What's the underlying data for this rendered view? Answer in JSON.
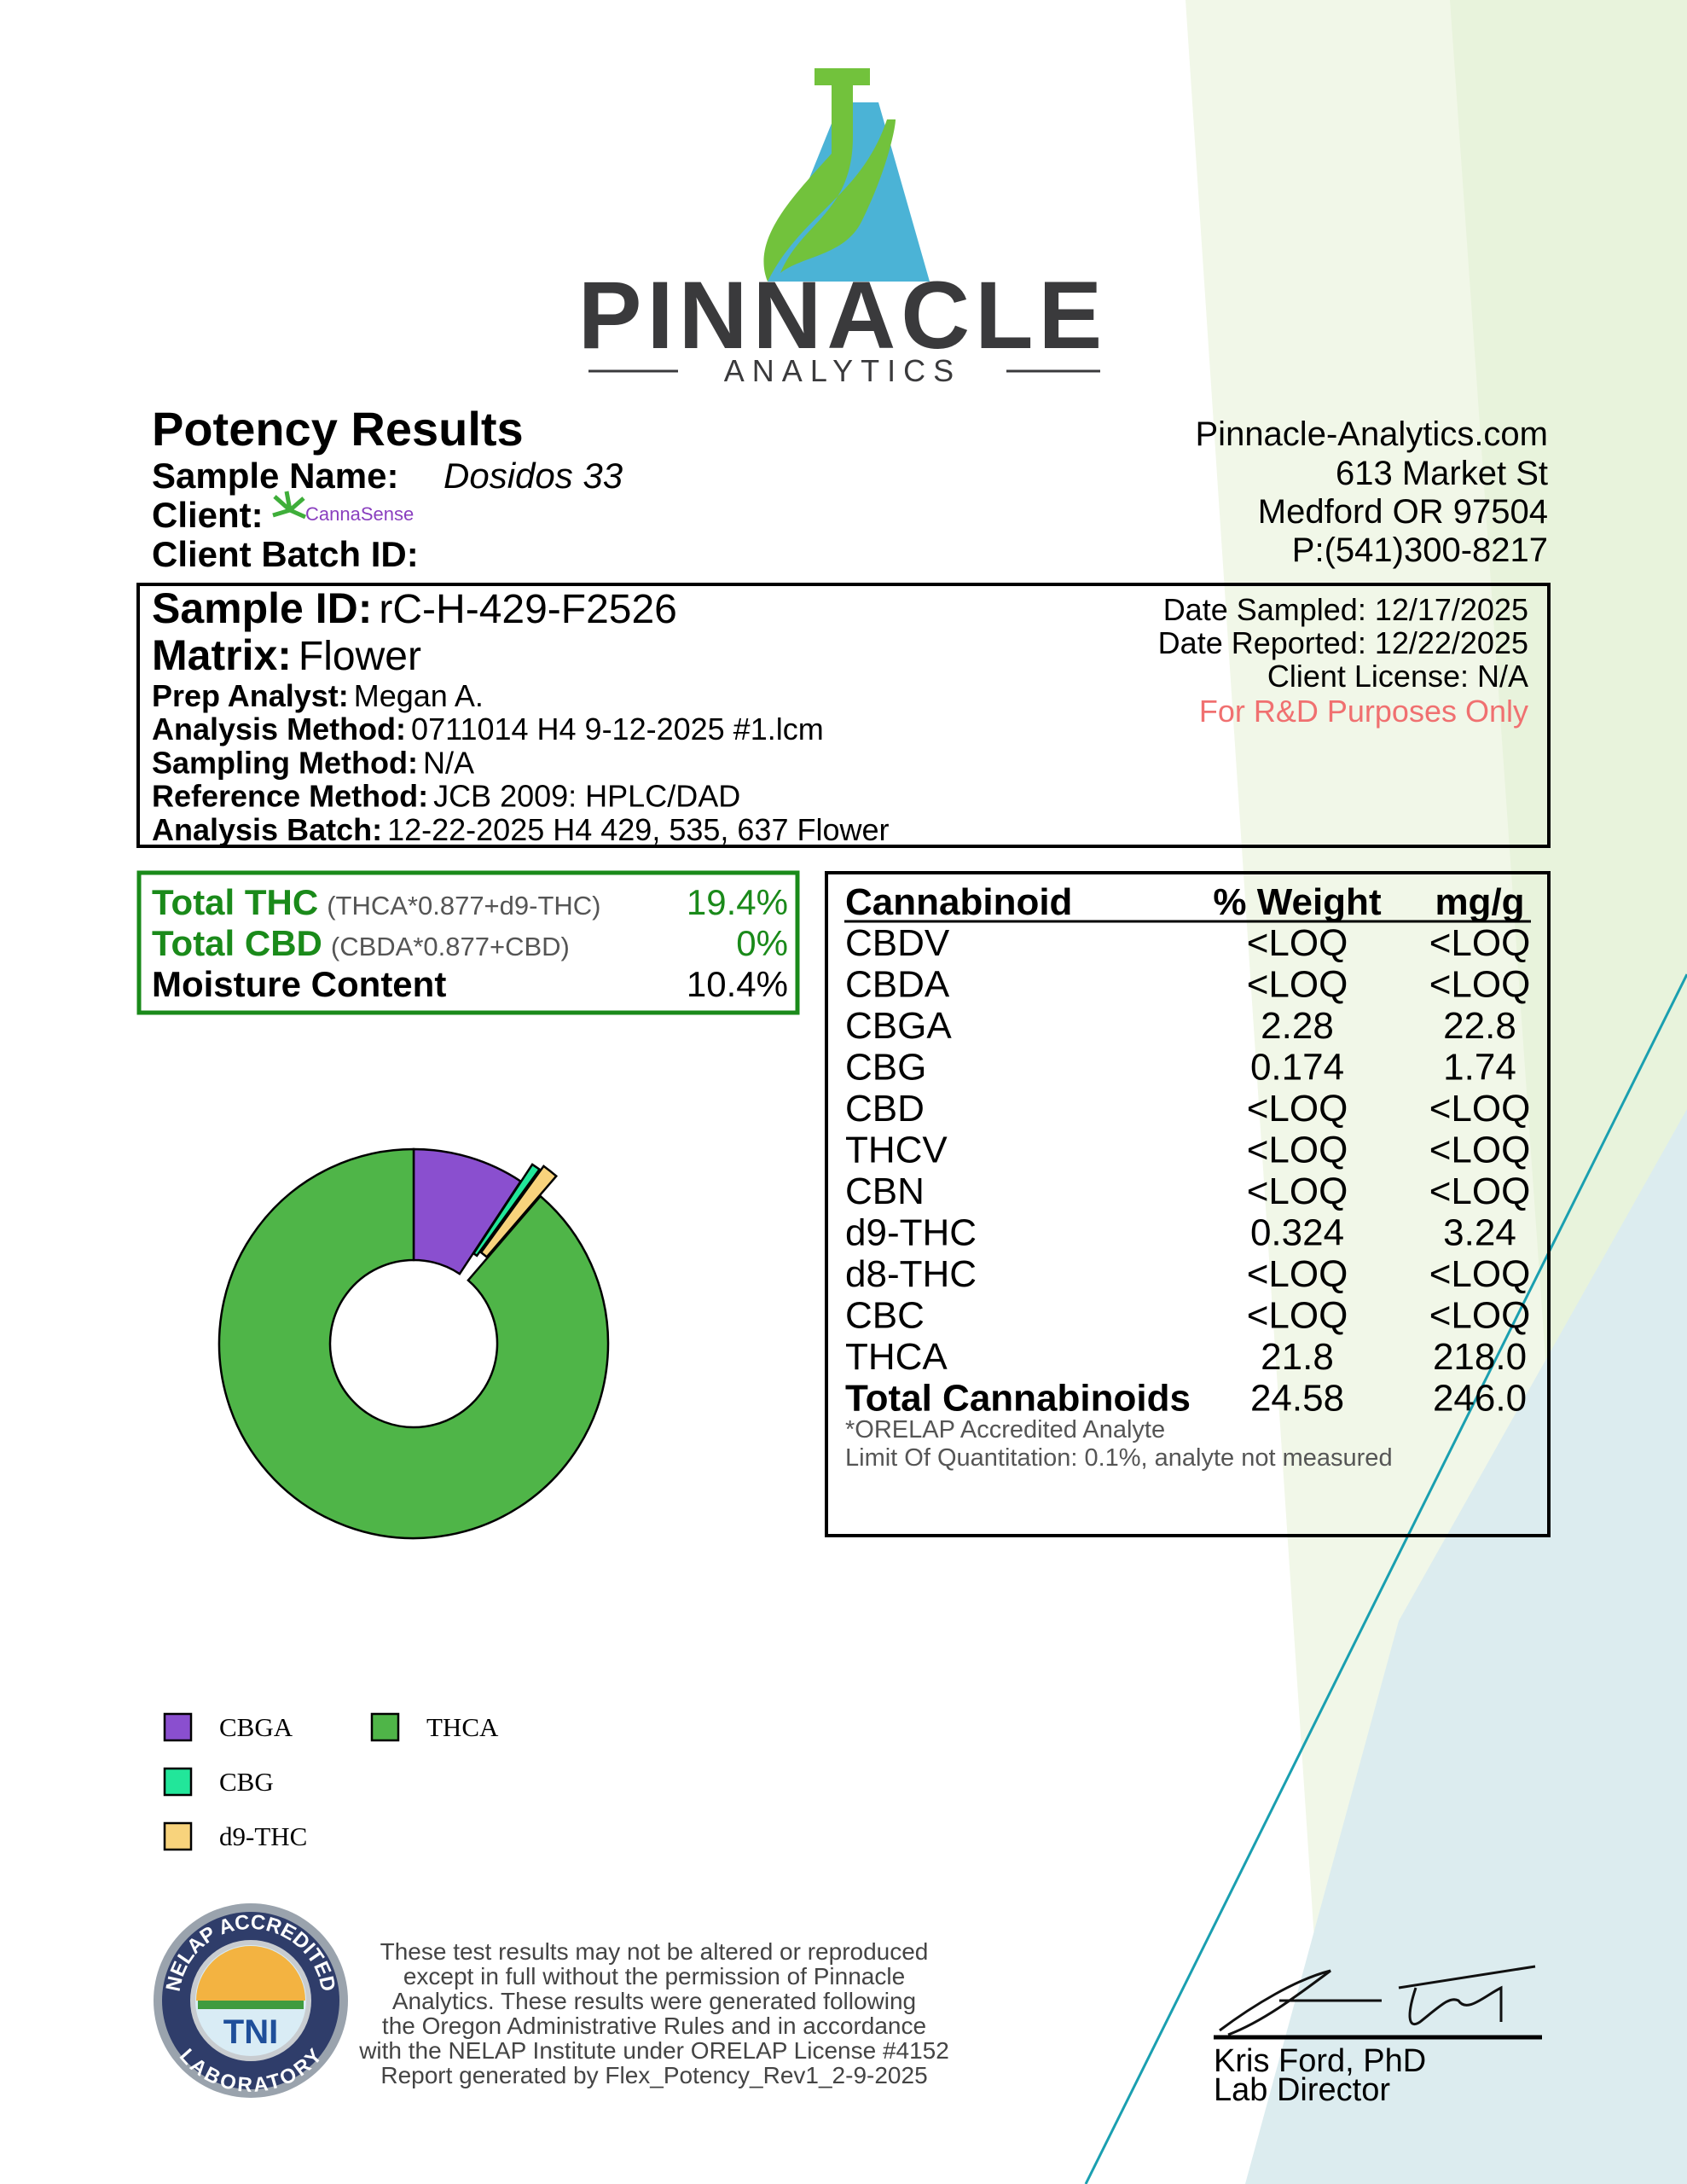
{
  "logo": {
    "name": "PINNACLE",
    "tagline": "ANALYTICS"
  },
  "header": {
    "title": "Potency Results",
    "sample_name_label": "Sample Name:",
    "sample_name": "Dosidos 33",
    "client_label": "Client:",
    "client_logo": "CannaSense",
    "batch_label": "Client Batch ID:"
  },
  "lab": {
    "website": "Pinnacle-Analytics.com",
    "street": "613 Market St",
    "city": "Medford OR 97504",
    "phone": "P:(541)300-8217"
  },
  "sample": {
    "id_label": "Sample ID:",
    "id": "rC-H-429-F2526",
    "matrix_label": "Matrix:",
    "matrix": "Flower",
    "fields": [
      {
        "label": "Prep Analyst:",
        "value": "Megan A."
      },
      {
        "label": "Analysis Method:",
        "value": "0711014 H4 9-12-2025 #1.lcm"
      },
      {
        "label": "Sampling Method:",
        "value": "N/A"
      },
      {
        "label": "Reference Method:",
        "value": "JCB 2009: HPLC/DAD"
      },
      {
        "label": "Analysis Batch:",
        "value": "12-22-2025 H4 429, 535, 637 Flower"
      }
    ],
    "date_sampled": "Date Sampled:  12/17/2025",
    "date_reported": "Date Reported: 12/22/2025",
    "license": "Client License: N/A",
    "purpose": "For R&D Purposes Only"
  },
  "summary": [
    {
      "label": "Total THC",
      "formula": "(THCA*0.877+d9-THC)",
      "value": "19.4%"
    },
    {
      "label": "Total CBD",
      "formula": "(CBDA*0.877+CBD)",
      "value": "0%"
    },
    {
      "label": "Moisture Content",
      "value": "10.4%"
    }
  ],
  "table": {
    "headers": [
      "Cannabinoid",
      "% Weight",
      "mg/g"
    ],
    "rows": [
      [
        "CBDV",
        "<LOQ",
        "<LOQ"
      ],
      [
        "CBDA",
        "<LOQ",
        "<LOQ"
      ],
      [
        "CBGA",
        "2.28",
        "22.8"
      ],
      [
        "CBG",
        "0.174",
        "1.74"
      ],
      [
        "CBD",
        "<LOQ",
        "<LOQ"
      ],
      [
        "THCV",
        "<LOQ",
        "<LOQ"
      ],
      [
        "CBN",
        "<LOQ",
        "<LOQ"
      ],
      [
        "d9-THC",
        "0.324",
        "3.24"
      ],
      [
        "d8-THC",
        "<LOQ",
        "<LOQ"
      ],
      [
        "CBC",
        "<LOQ",
        "<LOQ"
      ],
      [
        "THCA",
        "21.8",
        "218.0"
      ],
      [
        "Total Cannabinoids",
        "24.58",
        "246.0"
      ]
    ],
    "notes": [
      "*ORELAP Accredited Analyte",
      "Limit Of Quantitation: 0.1%, analyte not measured"
    ]
  },
  "chart_data": {
    "type": "pie",
    "categories": [
      "CBGA",
      "CBG",
      "d9-THC",
      "THCA"
    ],
    "values": [
      2.28,
      0.174,
      0.324,
      21.8
    ],
    "colors": [
      "#8a4fcf",
      "#22e69a",
      "#f8d37c",
      "#4fb548"
    ]
  },
  "footer": {
    "seal": {
      "top": "NELAP ACCREDITED",
      "center": "TNI",
      "bottom": "LABORATORY"
    },
    "disclaimer": [
      "These test results may not be altered or reproduced",
      "except in full without the permission of Pinnacle",
      "Analytics. These results were generated following",
      "the Oregon Administrative Rules and in accordance",
      "with the NELAP Institute under ORELAP License #4152",
      "Report generated by Flex_Potency_Rev1_2-9-2025"
    ]
  },
  "signature": {
    "name": "Kris Ford, PhD",
    "title": "Lab Director"
  }
}
